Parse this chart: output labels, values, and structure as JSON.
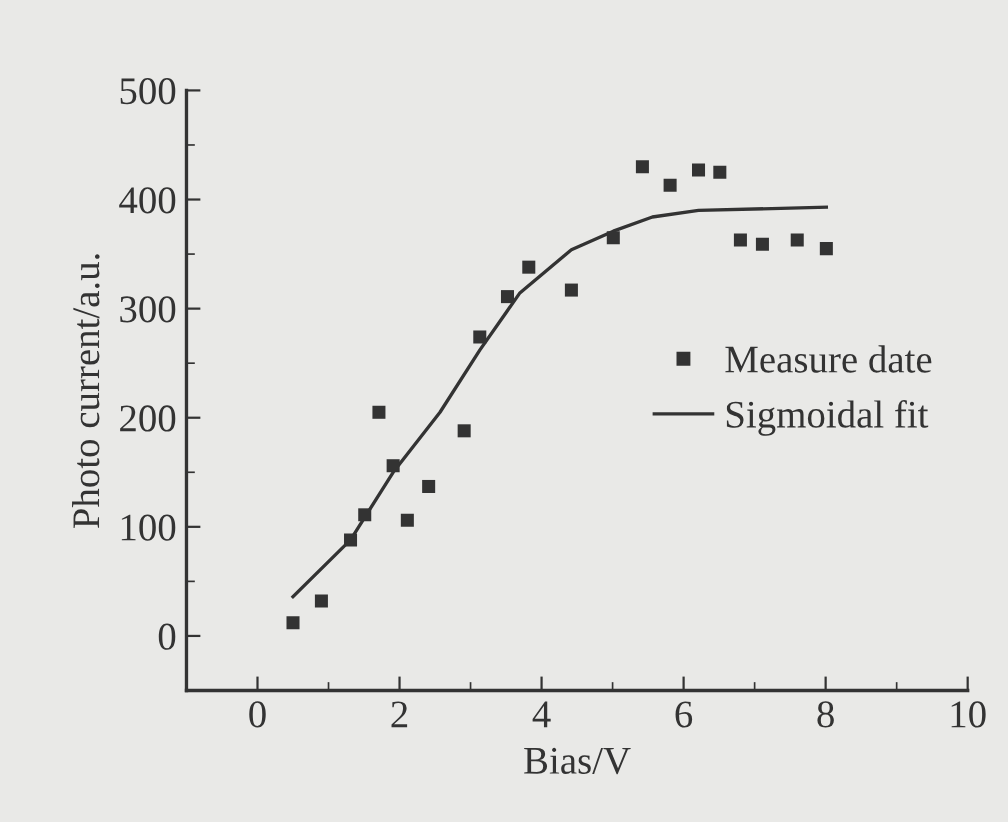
{
  "chart_data": {
    "type": "scatter",
    "xlabel": "Bias/V",
    "ylabel": "Photo current/a.u.",
    "xlim": [
      -1,
      10
    ],
    "xticks": [
      0,
      2,
      4,
      6,
      8,
      10
    ],
    "ylim": [
      -50,
      500
    ],
    "yticks": [
      0,
      100,
      200,
      300,
      400,
      500
    ],
    "grid": false,
    "legend": "right",
    "marker": "square",
    "series": [
      {
        "name": "Measure date",
        "color": "#333333",
        "x": [
          0.5,
          0.9,
          1.31,
          1.51,
          1.71,
          1.91,
          2.11,
          2.41,
          2.91,
          3.13,
          3.52,
          3.82,
          4.42,
          5.01,
          5.42,
          5.81,
          6.21,
          6.51,
          6.8,
          7.11,
          7.6,
          8.01
        ],
        "values": [
          12,
          32,
          88,
          111,
          205,
          156,
          106,
          137,
          188,
          274,
          311,
          338,
          317,
          365,
          430,
          413,
          427,
          425,
          363,
          359,
          363,
          355
        ]
      },
      {
        "name": "Sigmoidal fit",
        "type": "line",
        "color": "#333333",
        "marker": "none",
        "line_style": "solid",
        "x": [
          0.5,
          1.31,
          1.91,
          2.57,
          3.13,
          3.69,
          4.42,
          5.01,
          5.56,
          6.21,
          8.01
        ],
        "values": [
          36,
          88,
          150,
          205,
          262,
          314,
          354,
          371,
          384,
          390,
          393
        ]
      }
    ]
  }
}
